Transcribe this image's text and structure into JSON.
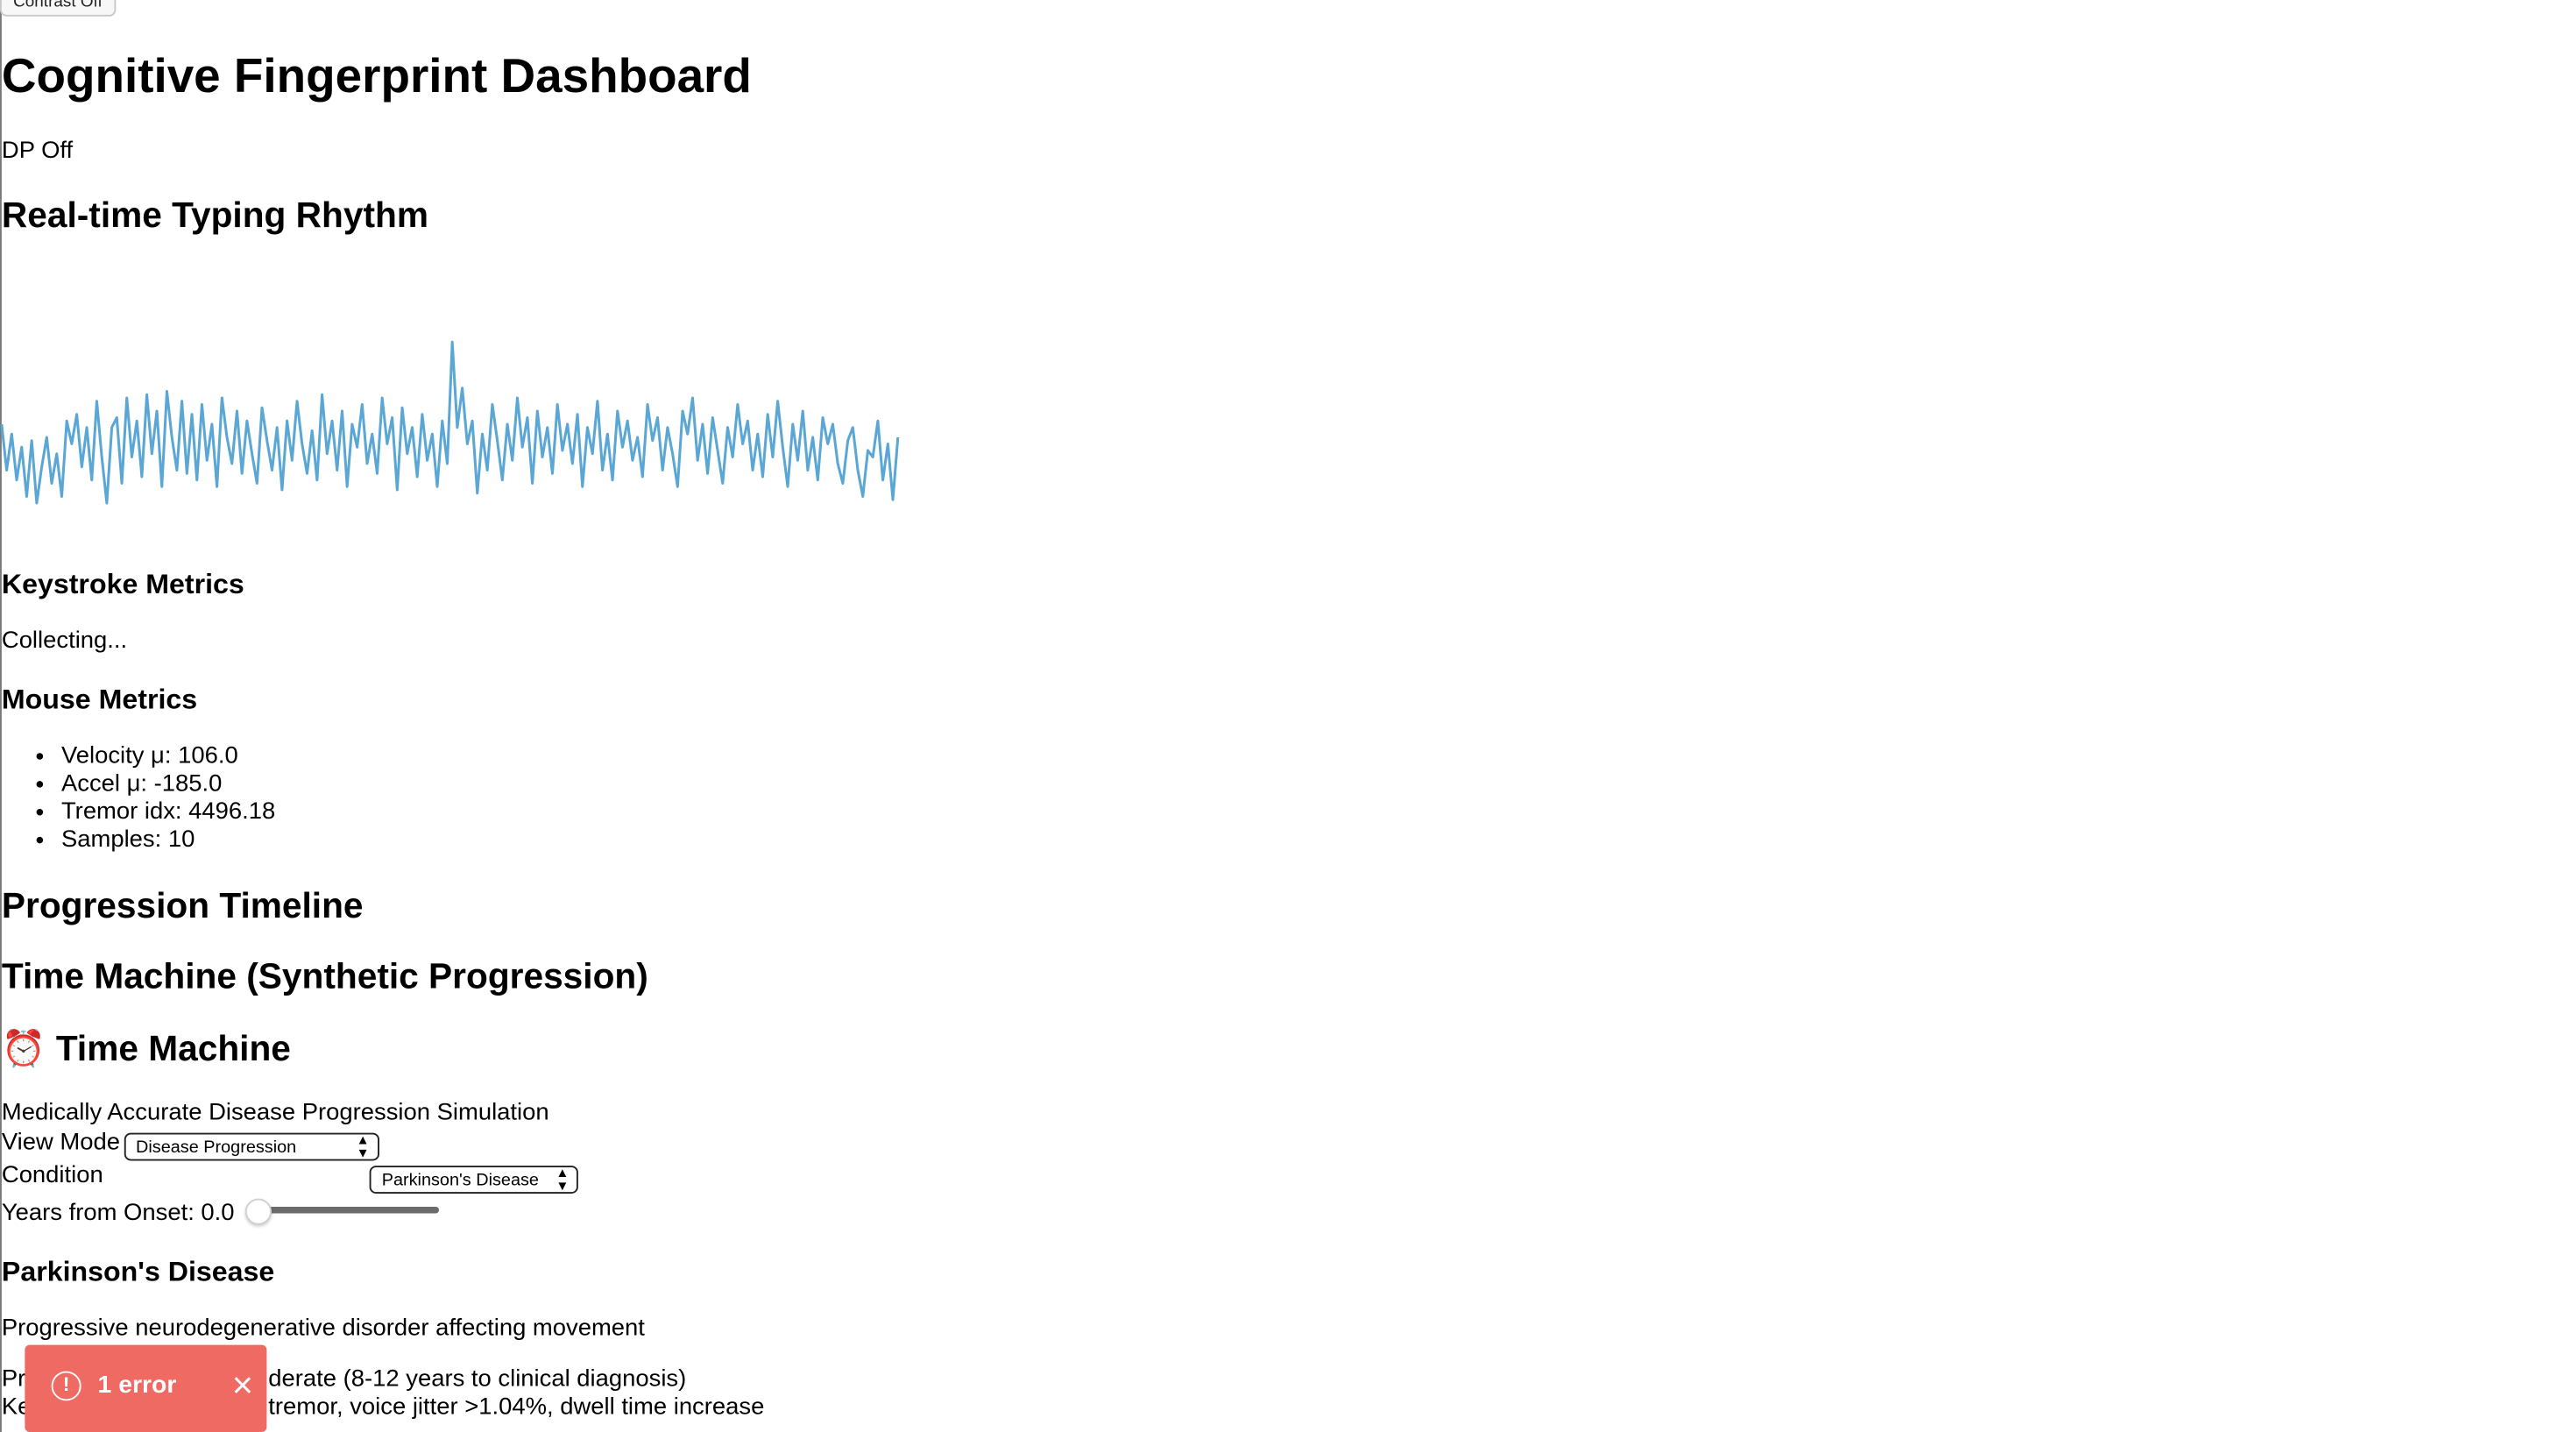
{
  "contrast_button": {
    "label": "Contrast Off"
  },
  "page_title": "Cognitive Fingerprint Dashboard",
  "dp_status": "DP Off",
  "rhythm": {
    "title": "Real-time Typing Rhythm",
    "color": "#5aa7d6"
  },
  "chart_data": {
    "type": "line",
    "title": "Real-time Typing Rhythm",
    "xlabel": "",
    "ylabel": "",
    "grid": false,
    "x": [
      0,
      1,
      2,
      3,
      4,
      5,
      6,
      7,
      8,
      9,
      10,
      11,
      12,
      13,
      14,
      15,
      16,
      17,
      18,
      19,
      20,
      21,
      22,
      23,
      24,
      25,
      26,
      27,
      28,
      29,
      30,
      31,
      32,
      33,
      34,
      35,
      36,
      37,
      38,
      39,
      40,
      41,
      42,
      43,
      44,
      45,
      46,
      47,
      48,
      49,
      50,
      51,
      52,
      53,
      54,
      55,
      56,
      57,
      58,
      59,
      60,
      61,
      62,
      63,
      64,
      65,
      66,
      67,
      68,
      69,
      70,
      71,
      72,
      73,
      74,
      75,
      76,
      77,
      78,
      79,
      80,
      81,
      82,
      83,
      84,
      85,
      86,
      87,
      88,
      89,
      90,
      91,
      92,
      93,
      94,
      95,
      96,
      97,
      98,
      99,
      100,
      101,
      102,
      103,
      104,
      105,
      106,
      107,
      108,
      109,
      110,
      111,
      112,
      113,
      114,
      115,
      116,
      117,
      118,
      119,
      120,
      121,
      122,
      123,
      124,
      125,
      126,
      127,
      128,
      129,
      130,
      131,
      132,
      133,
      134,
      135,
      136,
      137,
      138,
      139,
      140,
      141,
      142,
      143,
      144,
      145,
      146,
      147,
      148,
      149,
      150,
      151,
      152,
      153,
      154,
      155,
      156,
      157,
      158,
      159,
      160,
      161,
      162,
      163,
      164,
      165,
      166,
      167,
      168,
      169,
      170,
      171,
      172,
      173,
      174,
      175,
      176,
      177,
      178,
      179
    ],
    "series": [
      {
        "values": [
          58,
          30,
          52,
          24,
          44,
          14,
          48,
          10,
          32,
          50,
          22,
          40,
          14,
          60,
          46,
          64,
          32,
          56,
          24,
          72,
          38,
          10,
          56,
          62,
          22,
          74,
          38,
          60,
          26,
          76,
          40,
          66,
          20,
          78,
          50,
          30,
          72,
          28,
          64,
          24,
          70,
          36,
          58,
          20,
          74,
          50,
          34,
          66,
          28,
          60,
          40,
          22,
          68,
          48,
          30,
          56,
          18,
          60,
          36,
          72,
          46,
          28,
          54,
          24,
          76,
          40,
          60,
          30,
          66,
          20,
          58,
          44,
          70,
          34,
          52,
          28,
          74,
          46,
          62,
          18,
          68,
          40,
          56,
          26,
          64,
          36,
          52,
          20,
          60,
          34,
          108,
          56,
          80,
          46,
          60,
          16,
          52,
          30,
          70,
          48,
          24,
          58,
          36,
          74,
          44,
          62,
          22,
          66,
          38,
          56,
          28,
          70,
          42,
          58,
          34,
          64,
          20,
          56,
          40,
          72,
          30,
          52,
          24,
          66,
          44,
          60,
          36,
          50,
          26,
          70,
          48,
          62,
          30,
          56,
          40,
          20,
          66,
          52,
          74,
          36,
          58,
          28,
          62,
          42,
          22,
          56,
          38,
          70,
          46,
          60,
          30,
          52,
          26,
          64,
          38,
          72,
          44,
          20,
          58,
          36,
          66,
          30,
          50,
          24,
          62,
          46,
          58,
          34,
          22,
          48,
          56,
          30,
          14,
          42,
          38,
          60,
          24,
          46,
          12,
          50
        ]
      }
    ]
  },
  "keystroke": {
    "title": "Keystroke Metrics",
    "status": "Collecting..."
  },
  "mouse": {
    "title": "Mouse Metrics",
    "items": [
      "Velocity μ: 106.0",
      "Accel μ: -185.0",
      "Tremor idx: 4496.18",
      "Samples: 10"
    ]
  },
  "progression": {
    "title": "Progression Timeline",
    "time_machine_title": "Time Machine (Synthetic Progression)",
    "tm_heading_icon": "⏰",
    "tm_heading": "Time Machine",
    "subtitle": "Medically Accurate Disease Progression Simulation",
    "view_mode_label": "View Mode",
    "view_mode_value": "Disease Progression",
    "condition_label": "Condition",
    "condition_value": "Parkinson's Disease",
    "years_label": "Years from Onset: 0.0",
    "years_value": 0.0
  },
  "disease": {
    "name": "Parkinson's Disease",
    "description": "Progressive neurodegenerative disorder affecting movement",
    "line1_visible": "Pr",
    "line1_rest": "derate (8-12 years to clinical diagnosis)",
    "line2_visible": "Ke",
    "line2_rest": "tremor, voice jitter >1.04%, dwell time increase"
  },
  "error_toast": {
    "label": "1 error",
    "icon": "alert-circle-icon",
    "close_icon": "close-icon",
    "color": "#ee6a62"
  }
}
